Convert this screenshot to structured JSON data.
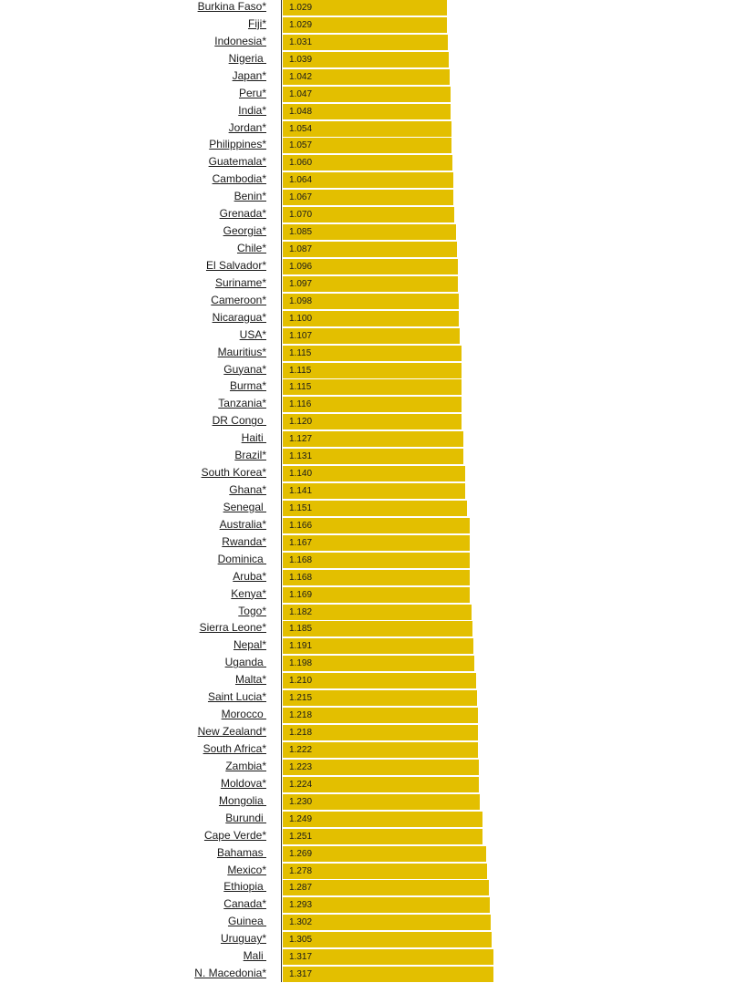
{
  "chart_data": {
    "type": "bar",
    "orientation": "horizontal",
    "colors": {
      "bar": "#e3bf00",
      "text": "#1a1a1a",
      "axis": "#333333"
    },
    "xlim": [
      0,
      1.317
    ],
    "categories": [
      "Burkina Faso*",
      "Fiji*",
      "Indonesia*",
      "Nigeria ",
      "Japan*",
      "Peru*",
      "India*",
      "Jordan*",
      "Philippines*",
      "Guatemala*",
      "Cambodia*",
      "Benin*",
      "Grenada*",
      "Georgia*",
      "Chile*",
      "El Salvador*",
      "Suriname*",
      "Cameroon*",
      "Nicaragua*",
      "USA*",
      "Mauritius*",
      "Guyana*",
      "Burma*",
      "Tanzania*",
      "DR Congo ",
      "Haiti ",
      "Brazil*",
      "South Korea*",
      "Ghana*",
      "Senegal ",
      "Australia*",
      "Rwanda*",
      "Dominica ",
      "Aruba*",
      "Kenya*",
      "Togo*",
      "Sierra Leone*",
      "Nepal*",
      "Uganda ",
      "Malta*",
      "Saint Lucia*",
      "Morocco ",
      "New Zealand*",
      "South Africa*",
      "Zambia*",
      "Moldova*",
      "Mongolia ",
      "Burundi ",
      "Cape Verde*",
      "Bahamas ",
      "Mexico*",
      "Ethiopia ",
      "Canada*",
      "Guinea ",
      "Uruguay*",
      "Mali ",
      "N. Macedonia*"
    ],
    "values": [
      1.029,
      1.029,
      1.031,
      1.039,
      1.042,
      1.047,
      1.048,
      1.054,
      1.057,
      1.06,
      1.064,
      1.067,
      1.07,
      1.085,
      1.087,
      1.096,
      1.097,
      1.098,
      1.1,
      1.107,
      1.115,
      1.115,
      1.115,
      1.116,
      1.12,
      1.127,
      1.131,
      1.14,
      1.141,
      1.151,
      1.166,
      1.167,
      1.168,
      1.168,
      1.169,
      1.182,
      1.185,
      1.191,
      1.198,
      1.21,
      1.215,
      1.218,
      1.218,
      1.222,
      1.223,
      1.224,
      1.23,
      1.249,
      1.251,
      1.269,
      1.278,
      1.287,
      1.293,
      1.302,
      1.305,
      1.317,
      1.317
    ],
    "value_labels": [
      "1.029",
      "1.029",
      "1.031",
      "1.039",
      "1.042",
      "1.047",
      "1.048",
      "1.054",
      "1.057",
      "1.060",
      "1.064",
      "1.067",
      "1.070",
      "1.085",
      "1.087",
      "1.096",
      "1.097",
      "1.098",
      "1.100",
      "1.107",
      "1.115",
      "1.115",
      "1.115",
      "1.116",
      "1.120",
      "1.127",
      "1.131",
      "1.140",
      "1.141",
      "1.151",
      "1.166",
      "1.167",
      "1.168",
      "1.168",
      "1.169",
      "1.182",
      "1.185",
      "1.191",
      "1.198",
      "1.210",
      "1.215",
      "1.218",
      "1.218",
      "1.222",
      "1.223",
      "1.224",
      "1.230",
      "1.249",
      "1.251",
      "1.269",
      "1.278",
      "1.287",
      "1.293",
      "1.302",
      "1.305",
      "1.317",
      "1.317"
    ]
  }
}
